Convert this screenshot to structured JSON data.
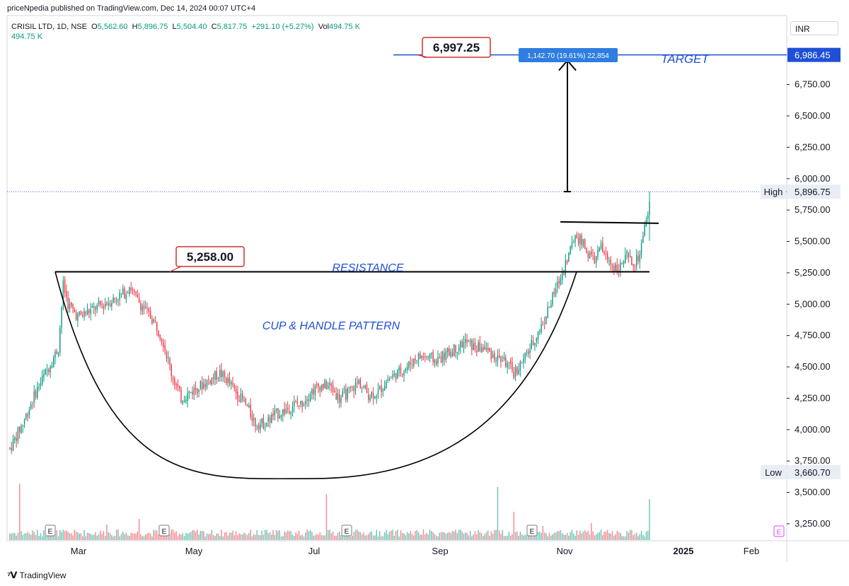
{
  "header": {
    "credit": "priceNpedia published on TradingView.com, Dec 14, 2024 00:07 UTC+4",
    "symbol": "CRISIL LTD, 1D, NSE",
    "o_label": "O",
    "o_val": "5,562.60",
    "h_label": "H",
    "h_val": "5,896.75",
    "l_label": "L",
    "l_val": "5,504.40",
    "c_label": "C",
    "c_val": "5,817.75",
    "change": "+291.10 (+5.27%)",
    "vol_label": "Vol",
    "vol_val": "494.75 K",
    "vol_line": "494.75 K"
  },
  "currency": "INR",
  "footer": {
    "brand": "TradingView"
  },
  "colors": {
    "up": "#089981",
    "down": "#f23645",
    "target": "#1f4fd6",
    "accent": "#2962ff"
  },
  "chart_data": {
    "type": "candlestick",
    "y_axis_ticks": [
      "3,250.00",
      "3,500.00",
      "3,750.00",
      "4,000.00",
      "4,250.00",
      "4,500.00",
      "4,750.00",
      "5,000.00",
      "5,250.00",
      "5,500.00",
      "5,750.00",
      "6,000.00",
      "6,250.00",
      "6,500.00",
      "6,750.00"
    ],
    "y_tick_values": [
      3250,
      3500,
      3750,
      4000,
      4250,
      4500,
      4750,
      5000,
      5250,
      5500,
      5750,
      6000,
      6250,
      6500,
      6750
    ],
    "x_axis_ticks": [
      "Mar",
      "May",
      "Jul",
      "Sep",
      "Nov",
      "2025",
      "Feb"
    ],
    "ylim": [
      3120,
      7300
    ],
    "price_labels": {
      "target_label": "6,986.45",
      "target_value": 6986.45,
      "high_label": "High",
      "high_value_text": "5,896.75",
      "high_value": 5896.75,
      "low_label": "Low",
      "low_value_text": "3,660.70",
      "low_value": 3660.7
    },
    "annotations": {
      "target_text": "TARGET",
      "resistance_text": "RESISTANCE",
      "pattern_text": "CUP & HANDLE PATTERN",
      "resistance_callout": "5,258.00",
      "target_callout": "6,997.25",
      "measure_box": "1,142.70 (19.61%) 22,854",
      "earnings_marker": "E"
    },
    "resistance_value": 5258.0,
    "handle_top_value": 5650,
    "cup_bottom_value": 3610,
    "path": [
      [
        0,
        3850
      ],
      [
        8,
        4050
      ],
      [
        16,
        4300
      ],
      [
        24,
        4500
      ],
      [
        30,
        4650
      ],
      [
        33,
        5150
      ],
      [
        36,
        5000
      ],
      [
        42,
        4900
      ],
      [
        50,
        4950
      ],
      [
        58,
        5000
      ],
      [
        66,
        5050
      ],
      [
        72,
        5100
      ],
      [
        74,
        5150
      ],
      [
        78,
        5050
      ],
      [
        84,
        4950
      ],
      [
        90,
        4850
      ],
      [
        95,
        4700
      ],
      [
        100,
        4450
      ],
      [
        106,
        4250
      ],
      [
        112,
        4300
      ],
      [
        118,
        4350
      ],
      [
        124,
        4400
      ],
      [
        130,
        4450
      ],
      [
        134,
        4400
      ],
      [
        140,
        4300
      ],
      [
        146,
        4200
      ],
      [
        152,
        4050
      ],
      [
        158,
        4050
      ],
      [
        164,
        4120
      ],
      [
        170,
        4150
      ],
      [
        176,
        4200
      ],
      [
        180,
        4200
      ],
      [
        186,
        4300
      ],
      [
        192,
        4350
      ],
      [
        198,
        4350
      ],
      [
        204,
        4250
      ],
      [
        210,
        4300
      ],
      [
        216,
        4380
      ],
      [
        222,
        4280
      ],
      [
        228,
        4300
      ],
      [
        234,
        4400
      ],
      [
        240,
        4450
      ],
      [
        246,
        4500
      ],
      [
        252,
        4580
      ],
      [
        258,
        4580
      ],
      [
        264,
        4550
      ],
      [
        270,
        4600
      ],
      [
        276,
        4650
      ],
      [
        282,
        4700
      ],
      [
        288,
        4650
      ],
      [
        294,
        4650
      ],
      [
        300,
        4580
      ],
      [
        306,
        4550
      ],
      [
        312,
        4450
      ],
      [
        318,
        4550
      ],
      [
        324,
        4700
      ],
      [
        330,
        4850
      ],
      [
        336,
        5050
      ],
      [
        342,
        5250
      ],
      [
        346,
        5400
      ],
      [
        350,
        5550
      ],
      [
        354,
        5500
      ],
      [
        358,
        5400
      ],
      [
        362,
        5350
      ],
      [
        366,
        5450
      ],
      [
        370,
        5350
      ],
      [
        374,
        5300
      ],
      [
        378,
        5300
      ],
      [
        382,
        5380
      ],
      [
        386,
        5300
      ],
      [
        390,
        5400
      ],
      [
        394,
        5650
      ],
      [
        396,
        5817
      ]
    ],
    "volume_spikes": {
      "6": 80,
      "60": 22,
      "80": 30,
      "196": 65,
      "302": 75,
      "312": 40,
      "330": 20,
      "360": 24,
      "396": 58
    }
  }
}
